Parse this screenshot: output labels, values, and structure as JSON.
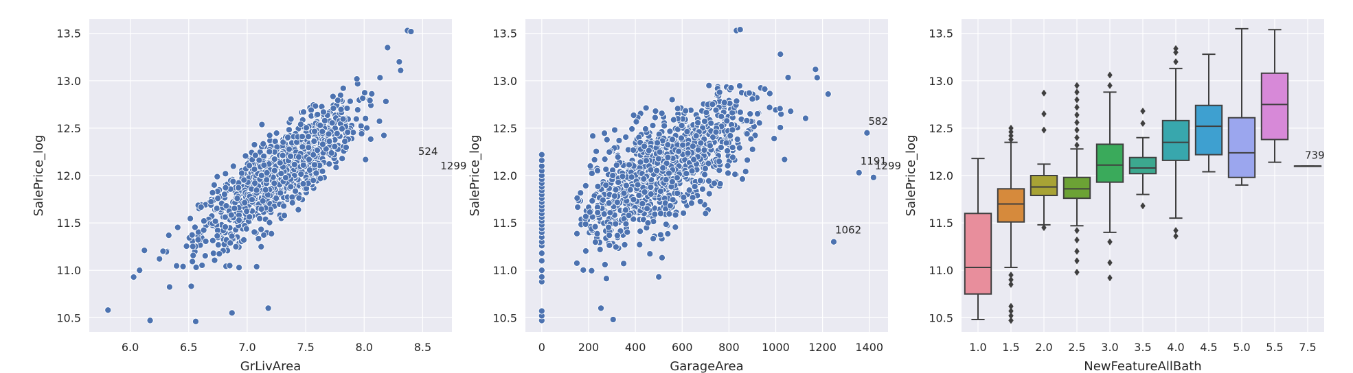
{
  "style": {
    "panel_background": "#eaeaf2",
    "grid_color": "#ffffff",
    "point_color": "#4c72b0",
    "point_edge": "#ffffff",
    "text_color": "#262626",
    "box_line": "#3f3f3f"
  },
  "chart_data": [
    {
      "type": "scatter",
      "xlabel": "GrLivArea",
      "ylabel": "SalePrice_log",
      "xlim": [
        5.65,
        8.75
      ],
      "ylim": [
        10.35,
        13.65
      ],
      "xticks": [
        6.0,
        6.5,
        7.0,
        7.5,
        8.0,
        8.5
      ],
      "xtick_labels": [
        "6.0",
        "6.5",
        "7.0",
        "7.5",
        "8.0",
        "8.5"
      ],
      "yticks": [
        10.5,
        11.0,
        11.5,
        12.0,
        12.5,
        13.0,
        13.5
      ],
      "ytick_labels": [
        "10.5",
        "11.0",
        "11.5",
        "12.0",
        "12.5",
        "13.0",
        "13.5"
      ],
      "trend": {
        "slope": 0.9,
        "x0": 7.2,
        "y0": 11.95,
        "noise": 0.2,
        "x_mean": 7.27,
        "x_sd": 0.33,
        "n": 1150
      },
      "outliers": [
        [
          5.81,
          10.58
        ],
        [
          6.08,
          11.0
        ],
        [
          6.17,
          10.47
        ],
        [
          6.25,
          11.12
        ],
        [
          6.56,
          10.46
        ],
        [
          6.87,
          10.55
        ],
        [
          7.18,
          10.6
        ],
        [
          8.37,
          13.53
        ],
        [
          8.4,
          13.52
        ],
        [
          8.3,
          13.2
        ],
        [
          8.2,
          13.35
        ]
      ],
      "annotations": [
        {
          "text": "524",
          "x": 8.45,
          "y": 12.13
        },
        {
          "text": "1299",
          "x": 8.64,
          "y": 11.98
        }
      ]
    },
    {
      "type": "scatter",
      "xlabel": "GarageArea",
      "ylabel": "SalePrice_log",
      "xlim": [
        -70,
        1480
      ],
      "ylim": [
        10.35,
        13.65
      ],
      "xticks": [
        0,
        200,
        400,
        600,
        800,
        1000,
        1200,
        1400
      ],
      "xtick_labels": [
        "0",
        "200",
        "400",
        "600",
        "800",
        "1000",
        "1200",
        "1400"
      ],
      "yticks": [
        10.5,
        11.0,
        11.5,
        12.0,
        12.5,
        13.0,
        13.5
      ],
      "ytick_labels": [
        "10.5",
        "11.0",
        "11.5",
        "12.0",
        "12.5",
        "13.0",
        "13.5"
      ],
      "trend": {
        "slope": 0.00135,
        "x0": 480,
        "y0": 12.0,
        "noise": 0.27,
        "x_mean": 500,
        "x_sd": 190,
        "n": 1080
      },
      "zero_column": [
        10.47,
        10.52,
        10.57,
        10.88,
        10.93,
        11.0,
        11.1,
        11.18,
        11.26,
        11.3,
        11.35,
        11.4,
        11.44,
        11.48,
        11.52,
        11.56,
        11.6,
        11.64,
        11.68,
        11.72,
        11.76,
        11.8,
        11.84,
        11.88,
        11.92,
        11.96,
        12.0,
        12.05,
        12.1,
        12.16,
        12.22
      ],
      "outliers": [
        [
          832,
          13.53
        ],
        [
          848,
          13.54
        ],
        [
          1020,
          13.28
        ],
        [
          1170,
          13.12
        ],
        [
          1224,
          12.86
        ],
        [
          1390,
          12.45
        ],
        [
          1356,
          12.03
        ],
        [
          1418,
          11.98
        ],
        [
          1248,
          11.3
        ],
        [
          253,
          10.6
        ],
        [
          305,
          10.48
        ],
        [
          500,
          10.93
        ]
      ],
      "annotations": [
        {
          "text": "582",
          "x": 1390,
          "y": 12.45
        },
        {
          "text": "1191",
          "x": 1356,
          "y": 12.03
        },
        {
          "text": "1299",
          "x": 1418,
          "y": 11.98
        },
        {
          "text": "1062",
          "x": 1248,
          "y": 11.3
        }
      ]
    },
    {
      "type": "box",
      "xlabel": "NewFeatureAllBath",
      "ylabel": "SalePrice_log",
      "ylim": [
        10.35,
        13.65
      ],
      "yticks": [
        10.5,
        11.0,
        11.5,
        12.0,
        12.5,
        13.0,
        13.5
      ],
      "ytick_labels": [
        "10.5",
        "11.0",
        "11.5",
        "12.0",
        "12.5",
        "13.0",
        "13.5"
      ],
      "categories": [
        "1.0",
        "1.5",
        "2.0",
        "2.5",
        "3.0",
        "3.5",
        "4.0",
        "4.5",
        "5.0",
        "5.5",
        "7.5"
      ],
      "boxes": [
        {
          "color": "#e88e9c",
          "q1": 10.75,
          "median": 11.03,
          "q3": 11.6,
          "low": 10.48,
          "high": 12.18,
          "fliers": []
        },
        {
          "color": "#d68a3c",
          "q1": 11.51,
          "median": 11.7,
          "q3": 11.86,
          "low": 11.03,
          "high": 12.35,
          "fliers": [
            10.47,
            10.52,
            10.57,
            10.62,
            10.85,
            10.9,
            10.95,
            12.38,
            12.42,
            12.46,
            12.5
          ]
        },
        {
          "color": "#a8a335",
          "q1": 11.79,
          "median": 11.88,
          "q3": 12.0,
          "low": 11.48,
          "high": 12.12,
          "fliers": [
            11.45,
            12.48,
            12.65,
            12.87
          ]
        },
        {
          "color": "#6ca235",
          "q1": 11.76,
          "median": 11.86,
          "q3": 11.98,
          "low": 11.47,
          "high": 12.28,
          "fliers": [
            10.98,
            11.1,
            11.2,
            11.32,
            11.42,
            12.32,
            12.4,
            12.48,
            12.56,
            12.64,
            12.72,
            12.8,
            12.88,
            12.95
          ]
        },
        {
          "color": "#3aaa5b",
          "q1": 11.93,
          "median": 12.11,
          "q3": 12.33,
          "low": 11.4,
          "high": 12.88,
          "fliers": [
            10.92,
            11.08,
            11.3,
            12.95,
            13.06
          ]
        },
        {
          "color": "#3ca88f",
          "q1": 12.02,
          "median": 12.08,
          "q3": 12.19,
          "low": 11.8,
          "high": 12.4,
          "fliers": [
            11.68,
            12.55,
            12.68
          ]
        },
        {
          "color": "#38a7ad",
          "q1": 12.16,
          "median": 12.35,
          "q3": 12.58,
          "low": 11.55,
          "high": 13.13,
          "fliers": [
            11.36,
            11.42,
            13.2,
            13.3,
            13.34
          ]
        },
        {
          "color": "#3ea0d0",
          "q1": 12.22,
          "median": 12.52,
          "q3": 12.74,
          "low": 12.04,
          "high": 13.28,
          "fliers": []
        },
        {
          "color": "#9ba6ee",
          "q1": 11.98,
          "median": 12.24,
          "q3": 12.61,
          "low": 11.9,
          "high": 13.55,
          "fliers": []
        },
        {
          "color": "#d789d8",
          "q1": 12.38,
          "median": 12.75,
          "q3": 13.08,
          "low": 12.14,
          "high": 13.54,
          "fliers": []
        },
        {
          "color": "#e77fc5",
          "q1": 12.1,
          "median": 12.1,
          "q3": 12.1,
          "low": 12.1,
          "high": 12.1,
          "fliers": []
        }
      ],
      "annotations": [
        {
          "text": "739",
          "category": "7.5",
          "y": 12.12
        }
      ]
    }
  ]
}
